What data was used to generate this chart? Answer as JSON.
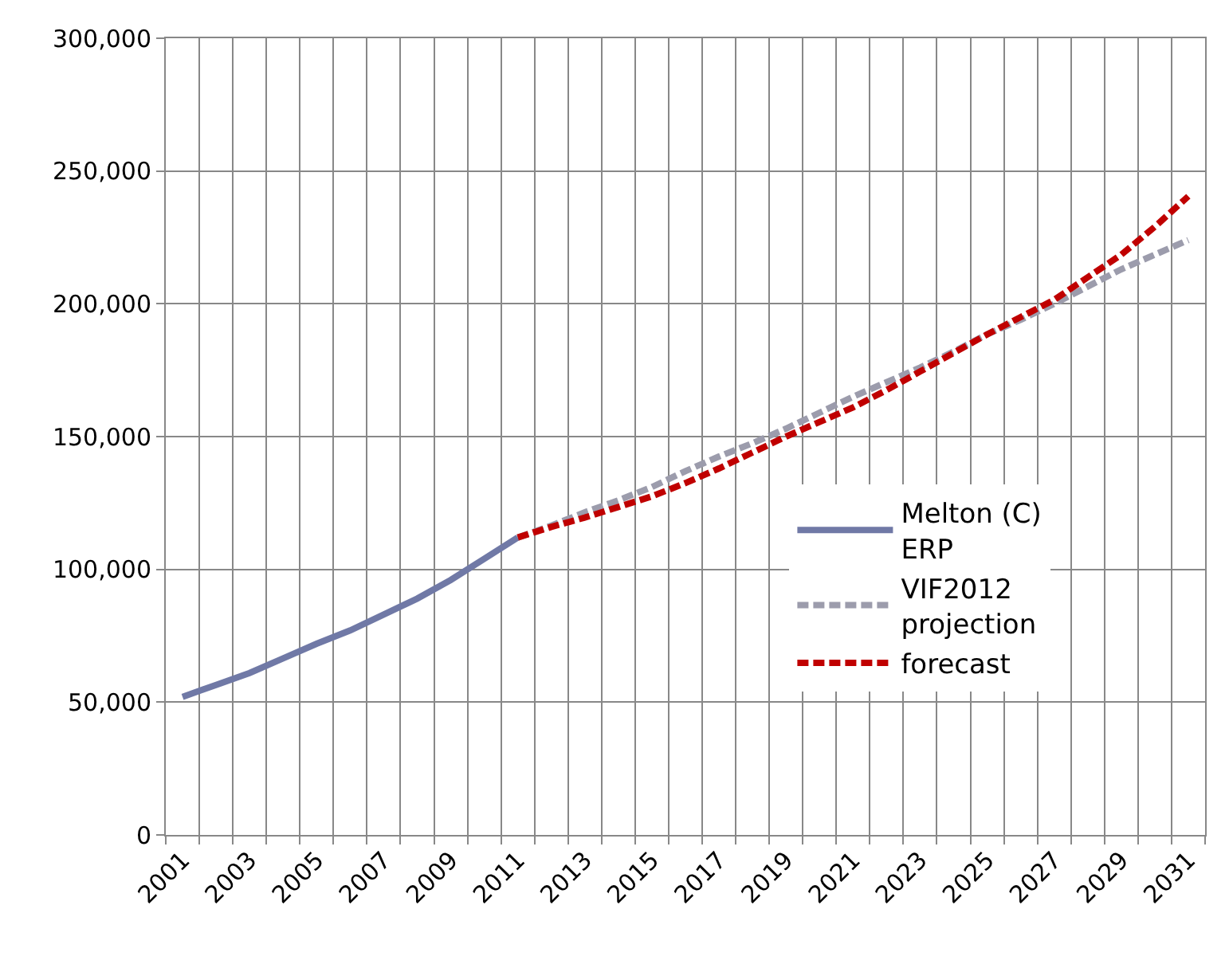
{
  "chart_data": {
    "type": "line",
    "categories": [
      "2001",
      null,
      "2003",
      null,
      "2005",
      null,
      "2007",
      null,
      "2009",
      null,
      "2011",
      null,
      "2013",
      null,
      "2015",
      null,
      "2017",
      null,
      "2019",
      null,
      "2021",
      null,
      "2023",
      null,
      "2025",
      null,
      "2027",
      null,
      "2029",
      null,
      "2031"
    ],
    "series": [
      {
        "name": "Melton (C) ERP",
        "color": "#7079a6",
        "line_style": "solid",
        "values": [
          52000,
          56500,
          61000,
          66500,
          72000,
          77000,
          83000,
          89000,
          96000,
          104000,
          112000,
          null,
          null,
          null,
          null,
          null,
          null,
          null,
          null,
          null,
          null,
          null,
          null,
          null,
          null,
          null,
          null,
          null,
          null,
          null,
          null
        ]
      },
      {
        "name": "VIF2012 projection",
        "color": "#9c9cac",
        "line_style": "dashed",
        "values": [
          null,
          null,
          null,
          null,
          null,
          null,
          null,
          null,
          null,
          null,
          112000,
          116500,
          121500,
          126000,
          131000,
          137000,
          142500,
          147500,
          153000,
          159000,
          165000,
          170500,
          176000,
          182000,
          188500,
          194000,
          200000,
          206500,
          213000,
          218500,
          224000
        ]
      },
      {
        "name": "forecast",
        "color": "#c00000",
        "line_style": "dashed",
        "values": [
          null,
          null,
          null,
          null,
          null,
          null,
          null,
          null,
          null,
          null,
          112000,
          116000,
          119500,
          123500,
          127500,
          132500,
          138000,
          144000,
          150000,
          155500,
          161000,
          167500,
          174500,
          181500,
          188500,
          195000,
          201500,
          210000,
          218500,
          229000,
          240500
        ]
      }
    ],
    "ylim": [
      0,
      300000
    ],
    "yticks": [
      {
        "value": 0,
        "label": "0"
      },
      {
        "value": 50000,
        "label": "50,000"
      },
      {
        "value": 100000,
        "label": "100,000"
      },
      {
        "value": 150000,
        "label": "150,000"
      },
      {
        "value": 200000,
        "label": "200,000"
      },
      {
        "value": 250000,
        "label": "250,000"
      },
      {
        "value": 300000,
        "label": "300,000"
      }
    ],
    "grid": true,
    "legend": "bottom right"
  }
}
